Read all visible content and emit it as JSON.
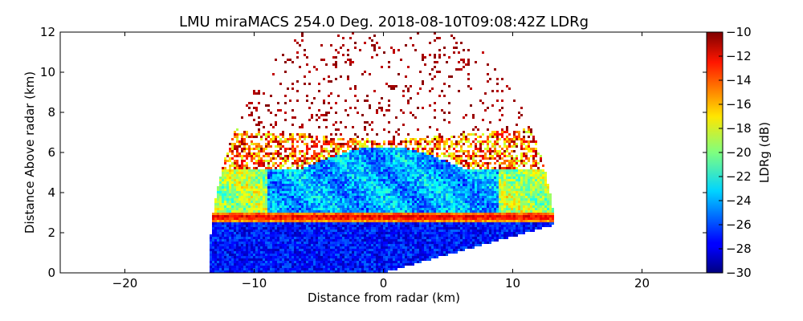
{
  "chart_data": {
    "type": "heatmap",
    "title": "LMU miraMACS 254.0 Deg. 2018-08-10T09:08:42Z  LDRg",
    "xlabel": "Distance from radar (km)",
    "ylabel": "Distance Above radar  (km)",
    "xlim": [
      -25,
      25
    ],
    "ylim": [
      0,
      12
    ],
    "x_ticks": [
      -20,
      -10,
      0,
      10,
      20
    ],
    "y_ticks": [
      0,
      2,
      4,
      6,
      8,
      10,
      12
    ],
    "grid": false,
    "colorbar": {
      "label": "LDRg (dB)",
      "range": [
        -30,
        -10
      ],
      "ticks": [
        -30,
        -28,
        -26,
        -24,
        -22,
        -20,
        -18,
        -16,
        -14,
        -12,
        -10
      ],
      "colormap": "jet"
    },
    "scan": {
      "type": "RHI",
      "max_range_km": 13.5,
      "elevation_range_deg": [
        0,
        180
      ],
      "regions": [
        {
          "name": "below-melting-layer",
          "height_km": [
            0,
            2.5
          ],
          "ldr_db": -28
        },
        {
          "name": "melting-layer",
          "height_km": [
            2.5,
            3.0
          ],
          "ldr_db": -13
        },
        {
          "name": "cloud-ice",
          "height_km": [
            3.0,
            6.0
          ],
          "ldr_db": -25
        },
        {
          "name": "cloud-top-edge",
          "height_km": [
            6.0,
            7.0
          ],
          "ldr_db": -18
        },
        {
          "name": "noise-speckle",
          "height_km": [
            7.0,
            12.0
          ],
          "ldr_db": -10
        }
      ]
    }
  }
}
